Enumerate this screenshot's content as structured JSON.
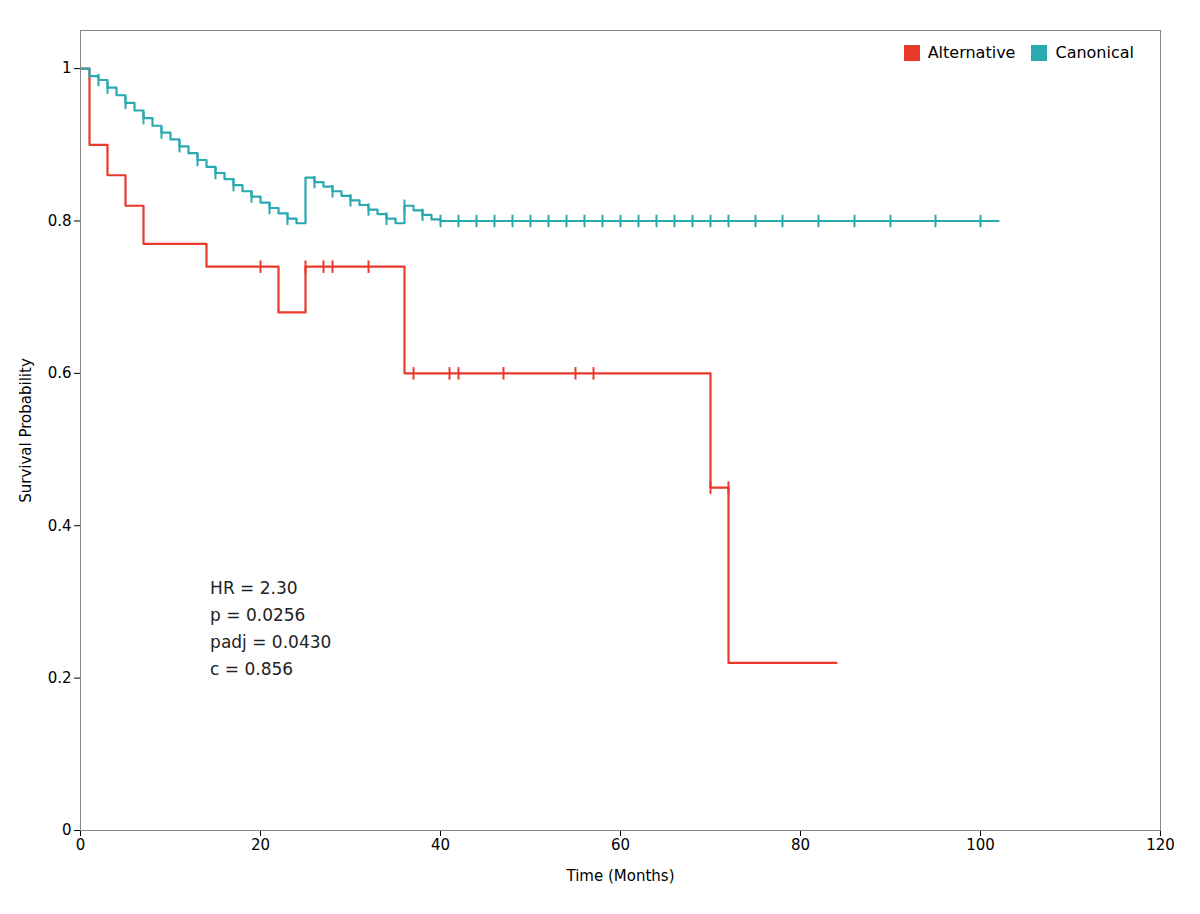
{
  "chart_data": {
    "type": "line",
    "line_style": "step",
    "xlabel": "Time (Months)",
    "ylabel": "Survival Probability",
    "xlim": [
      0,
      120
    ],
    "ylim": [
      0,
      1.05
    ],
    "xticks": [
      0,
      20,
      40,
      60,
      80,
      100,
      120
    ],
    "yticks": [
      0,
      0.2,
      0.4,
      0.6,
      0.8,
      1
    ],
    "legend": "upper right",
    "series": [
      {
        "name": "Alternative",
        "color": "#E8392A",
        "x": [
          0,
          1,
          3,
          5,
          7,
          14,
          20,
          22,
          25,
          30,
          36,
          39,
          63,
          70,
          72,
          84
        ],
        "values": [
          1.0,
          0.9,
          0.86,
          0.82,
          0.77,
          0.74,
          0.74,
          0.68,
          0.74,
          0.74,
          0.6,
          0.6,
          0.6,
          0.45,
          0.22,
          0.22
        ],
        "censor_x": [
          20,
          25,
          27,
          28,
          32,
          37,
          41,
          42,
          47,
          55,
          57,
          70,
          72
        ],
        "censor_y": [
          0.74,
          0.74,
          0.74,
          0.74,
          0.74,
          0.6,
          0.6,
          0.6,
          0.6,
          0.6,
          0.6,
          0.45,
          0.45
        ]
      },
      {
        "name": "Canonical",
        "color": "#29A9B0",
        "x": [
          0,
          1,
          2,
          3,
          4,
          5,
          6,
          7,
          8,
          9,
          10,
          11,
          12,
          13,
          14,
          15,
          16,
          17,
          18,
          19,
          20,
          21,
          22,
          23,
          24,
          25,
          26,
          27,
          28,
          29,
          30,
          31,
          32,
          33,
          34,
          35,
          36,
          37,
          38,
          39,
          40,
          102
        ],
        "values": [
          1.0,
          0.99,
          0.985,
          0.975,
          0.965,
          0.955,
          0.945,
          0.935,
          0.925,
          0.916,
          0.907,
          0.898,
          0.889,
          0.88,
          0.871,
          0.863,
          0.855,
          0.847,
          0.839,
          0.832,
          0.824,
          0.817,
          0.81,
          0.803,
          0.797,
          0.857,
          0.851,
          0.845,
          0.839,
          0.833,
          0.827,
          0.821,
          0.815,
          0.809,
          0.803,
          0.797,
          0.82,
          0.814,
          0.808,
          0.802,
          0.8,
          0.8
        ],
        "censor_x": [
          2,
          3,
          5,
          7,
          9,
          11,
          13,
          15,
          17,
          19,
          21,
          23,
          26,
          28,
          30,
          32,
          34,
          36,
          38,
          40,
          42,
          44,
          46,
          48,
          50,
          52,
          54,
          56,
          58,
          60,
          62,
          64,
          66,
          68,
          70,
          72,
          75,
          78,
          82,
          86,
          90,
          95,
          100
        ],
        "censor_y": [
          0.985,
          0.975,
          0.955,
          0.935,
          0.916,
          0.898,
          0.88,
          0.863,
          0.847,
          0.832,
          0.817,
          0.803,
          0.851,
          0.839,
          0.827,
          0.815,
          0.803,
          0.82,
          0.808,
          0.8,
          0.8,
          0.8,
          0.8,
          0.8,
          0.8,
          0.8,
          0.8,
          0.8,
          0.8,
          0.8,
          0.8,
          0.8,
          0.8,
          0.8,
          0.8,
          0.8,
          0.8,
          0.8,
          0.8,
          0.8,
          0.8,
          0.8,
          0.8
        ]
      }
    ],
    "annotations": [
      "HR = 2.30",
      "p = 0.0256",
      "padj = 0.0430",
      "c = 0.856"
    ]
  }
}
